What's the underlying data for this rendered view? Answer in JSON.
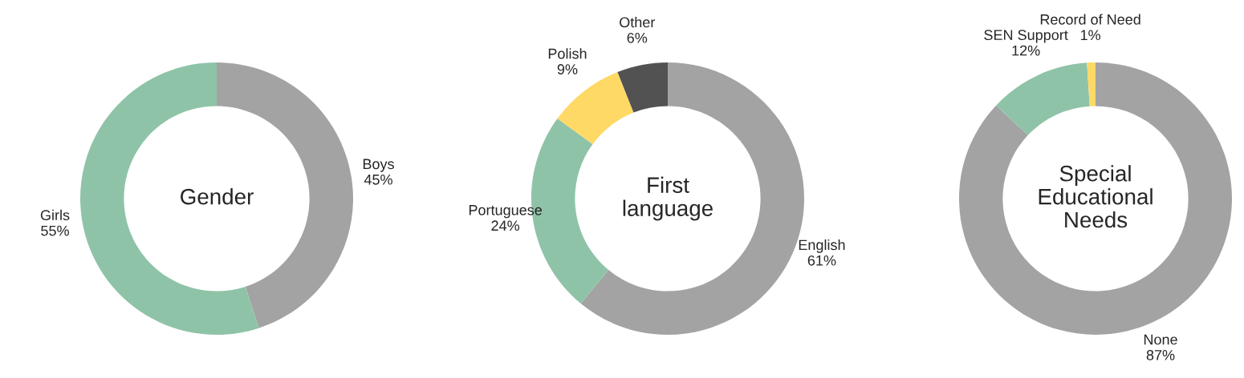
{
  "chart_data": [
    {
      "type": "donut",
      "title": "Gender",
      "categories": [
        "Boys",
        "Girls"
      ],
      "values": [
        45,
        55
      ],
      "colors": [
        "#a3a3a3",
        "#8fc3a8"
      ],
      "value_labels": [
        "45%",
        "55%"
      ],
      "legend": false
    },
    {
      "type": "donut",
      "title": "First\nlanguage",
      "categories": [
        "English",
        "Portuguese",
        "Polish",
        "Other"
      ],
      "values": [
        61,
        24,
        9,
        6
      ],
      "colors": [
        "#a3a3a3",
        "#8fc3a8",
        "#ffd966",
        "#525252"
      ],
      "value_labels": [
        "61%",
        "24%",
        "9%",
        "6%"
      ],
      "legend": false
    },
    {
      "type": "donut",
      "title": "Special\nEducational\nNeeds",
      "categories": [
        "None",
        "SEN Support",
        "Record of Need"
      ],
      "values": [
        87,
        12,
        1
      ],
      "colors": [
        "#a3a3a3",
        "#8fc3a8",
        "#ffd966"
      ],
      "value_labels": [
        "87%",
        "12%",
        "1%"
      ],
      "legend": false
    }
  ]
}
